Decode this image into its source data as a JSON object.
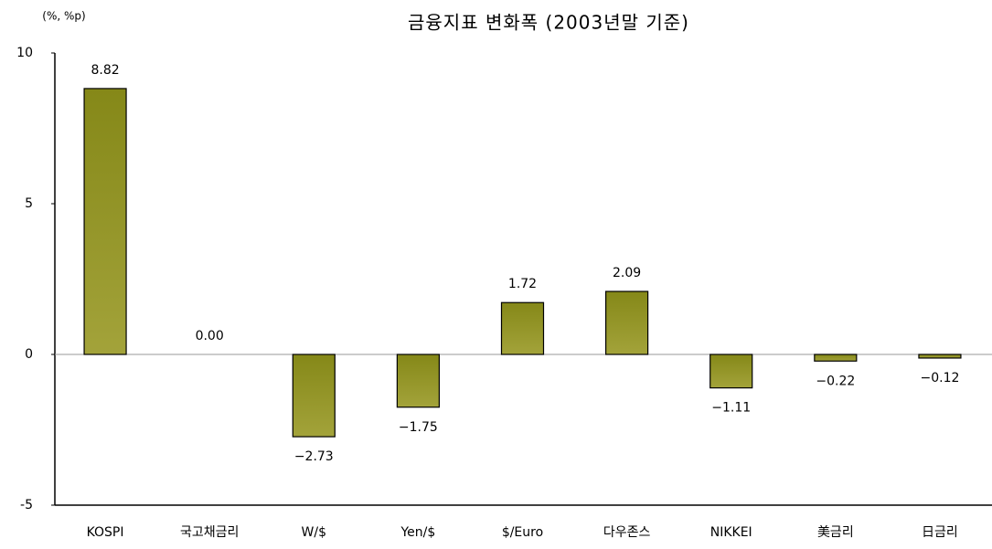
{
  "chart_data": {
    "type": "bar",
    "title": "금융지표 변화폭 (2003년말 기준)",
    "y_label": "(%, %p)",
    "categories": [
      "KOSPI",
      "국고채금리",
      "W/$",
      "Yen/$",
      "$/Euro",
      "다우존스",
      "NIKKEI",
      "美금리",
      "日금리"
    ],
    "values": [
      8.82,
      0.0,
      -2.73,
      -1.75,
      1.72,
      2.09,
      -1.11,
      -0.22,
      -0.12
    ],
    "value_labels": [
      "8.82",
      "0.00",
      "−2.73",
      "−1.75",
      "1.72",
      "2.09",
      "−1.11",
      "−0.22",
      "−0.12"
    ],
    "color": "#858818",
    "ylim": [
      -5,
      10
    ],
    "yticks": [
      -5,
      0,
      5,
      10
    ],
    "grid": false
  }
}
